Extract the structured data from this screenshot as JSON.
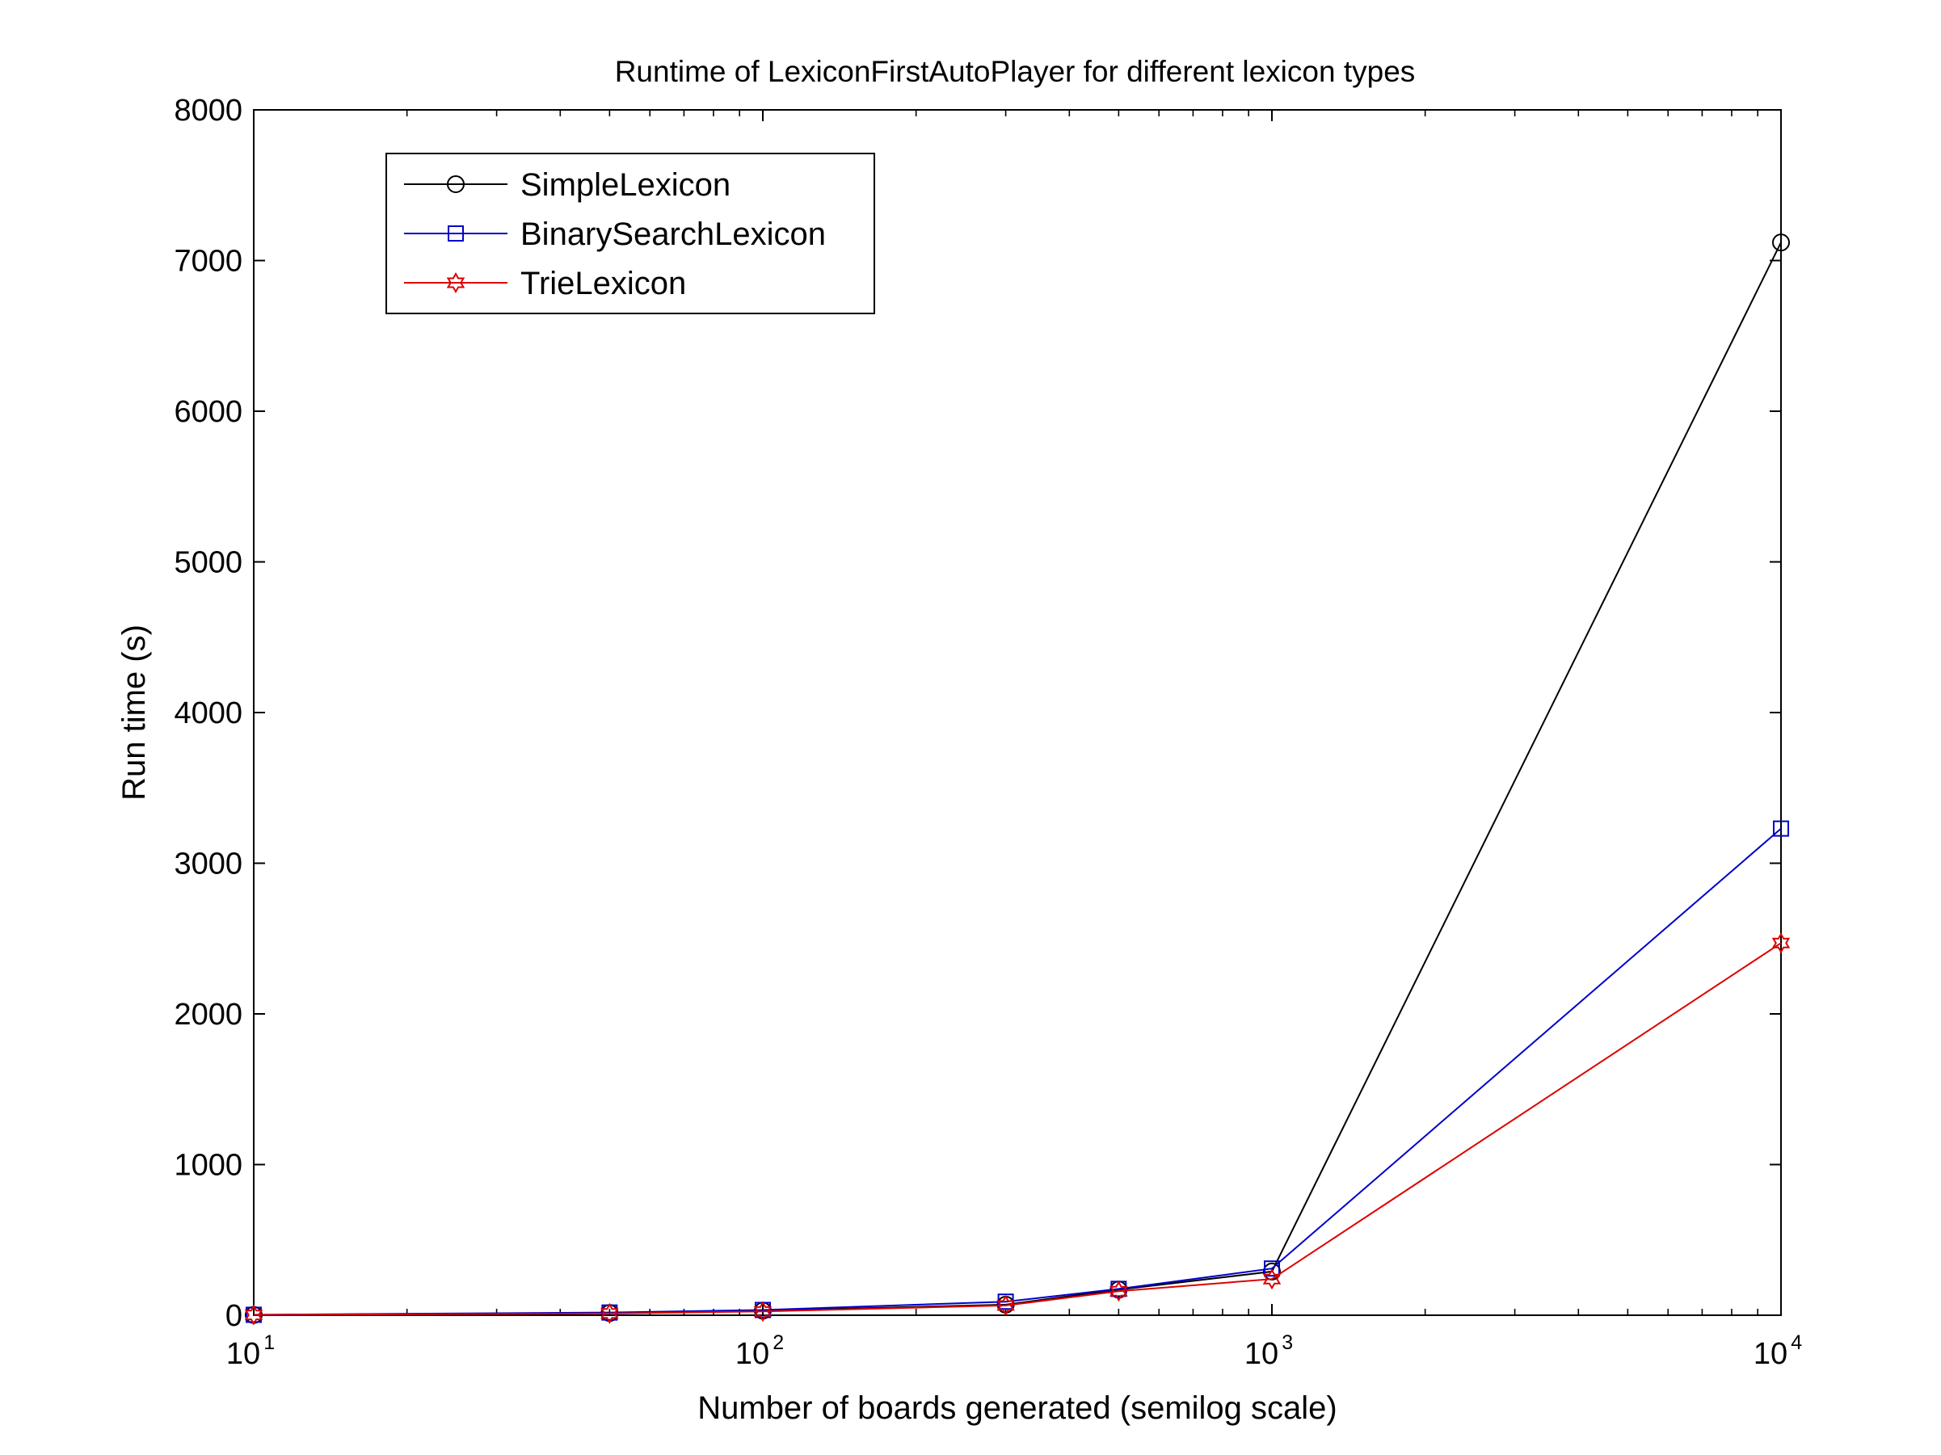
{
  "chart_data": {
    "type": "line",
    "title": "Runtime of LexiconFirstAutoPlayer for different lexicon types",
    "xlabel": "Number of boards generated (semilog scale)",
    "ylabel": "Run time (s)",
    "x_scale": "log",
    "xlim": [
      10,
      10000
    ],
    "ylim": [
      0,
      8000
    ],
    "x_ticks": [
      {
        "value": 10,
        "base": "10",
        "exp": "1"
      },
      {
        "value": 100,
        "base": "10",
        "exp": "2"
      },
      {
        "value": 1000,
        "base": "10",
        "exp": "3"
      },
      {
        "value": 10000,
        "base": "10",
        "exp": "4"
      }
    ],
    "y_ticks": [
      0,
      1000,
      2000,
      3000,
      4000,
      5000,
      6000,
      7000,
      8000
    ],
    "grid": false,
    "legend_position": "top-left",
    "x": [
      10,
      50,
      100,
      300,
      500,
      1000,
      10000
    ],
    "series": [
      {
        "name": "SimpleLexicon",
        "color": "#000000",
        "marker": "circle",
        "values": [
          2,
          15,
          30,
          70,
          170,
          290,
          7120
        ]
      },
      {
        "name": "BinarySearchLexicon",
        "color": "#0000cc",
        "marker": "square",
        "values": [
          3,
          18,
          35,
          90,
          175,
          310,
          3230
        ]
      },
      {
        "name": "TrieLexicon",
        "color": "#dd0000",
        "marker": "hexagram",
        "values": [
          2,
          12,
          25,
          65,
          160,
          240,
          2470
        ]
      }
    ]
  }
}
